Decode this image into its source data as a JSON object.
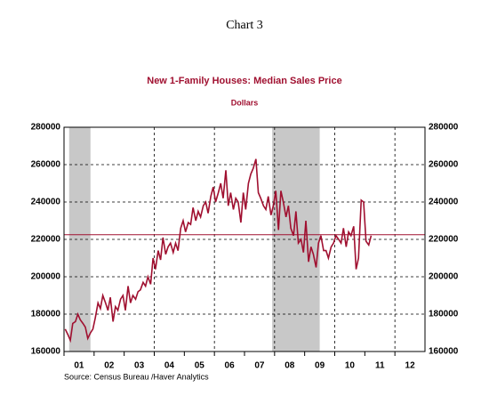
{
  "chart_data": {
    "type": "line",
    "title": "Chart 3",
    "subtitle": "New 1-Family Houses: Median Sales Price",
    "y_label": "Dollars",
    "source": "Source:  Census Bureau /Haver Analytics",
    "xlim": [
      2001,
      2013
    ],
    "xticks": [
      {
        "value": 2001.5,
        "label": "01"
      },
      {
        "value": 2002.5,
        "label": "02"
      },
      {
        "value": 2003.5,
        "label": "03"
      },
      {
        "value": 2004.5,
        "label": "04"
      },
      {
        "value": 2005.5,
        "label": "05"
      },
      {
        "value": 2006.5,
        "label": "06"
      },
      {
        "value": 2007.5,
        "label": "07"
      },
      {
        "value": 2008.5,
        "label": "08"
      },
      {
        "value": 2009.5,
        "label": "09"
      },
      {
        "value": 2010.5,
        "label": "10"
      },
      {
        "value": 2011.5,
        "label": "11"
      },
      {
        "value": 2012.5,
        "label": "12"
      }
    ],
    "xgrid": [
      2004,
      2006,
      2008,
      2010,
      2012
    ],
    "ylim": [
      160000,
      280000
    ],
    "yticks": [
      160000,
      180000,
      200000,
      220000,
      240000,
      260000,
      280000
    ],
    "y2lim": [
      160000,
      280000
    ],
    "y2ticks": [
      160000,
      180000,
      200000,
      220000,
      240000,
      260000,
      280000
    ],
    "grid": true,
    "shaded": [
      [
        2001.17,
        2001.88
      ],
      [
        2007.92,
        2009.5
      ]
    ],
    "reference_line": 222500,
    "x": [
      2001.04,
      2001.13,
      2001.21,
      2001.29,
      2001.38,
      2001.46,
      2001.54,
      2001.63,
      2001.71,
      2001.79,
      2001.88,
      2001.96,
      2002.04,
      2002.13,
      2002.21,
      2002.29,
      2002.38,
      2002.46,
      2002.54,
      2002.63,
      2002.71,
      2002.79,
      2002.88,
      2002.96,
      2003.04,
      2003.13,
      2003.21,
      2003.29,
      2003.38,
      2003.46,
      2003.54,
      2003.63,
      2003.71,
      2003.79,
      2003.88,
      2003.96,
      2004.04,
      2004.13,
      2004.21,
      2004.29,
      2004.38,
      2004.46,
      2004.54,
      2004.63,
      2004.71,
      2004.79,
      2004.88,
      2004.96,
      2005.04,
      2005.13,
      2005.21,
      2005.29,
      2005.38,
      2005.46,
      2005.54,
      2005.63,
      2005.71,
      2005.79,
      2005.88,
      2005.96,
      2006.04,
      2006.13,
      2006.21,
      2006.29,
      2006.38,
      2006.46,
      2006.54,
      2006.63,
      2006.71,
      2006.79,
      2006.88,
      2006.96,
      2007.04,
      2007.13,
      2007.21,
      2007.29,
      2007.38,
      2007.46,
      2007.54,
      2007.63,
      2007.71,
      2007.79,
      2007.88,
      2007.96,
      2008.04,
      2008.13,
      2008.21,
      2008.29,
      2008.38,
      2008.46,
      2008.54,
      2008.63,
      2008.71,
      2008.79,
      2008.88,
      2008.96,
      2009.04,
      2009.13,
      2009.21,
      2009.29,
      2009.38,
      2009.46,
      2009.54,
      2009.63,
      2009.71,
      2009.79,
      2009.88,
      2009.96,
      2010.04,
      2010.13,
      2010.21,
      2010.29,
      2010.38,
      2010.46,
      2010.54,
      2010.63,
      2010.71,
      2010.79,
      2010.88,
      2010.96,
      2011.04,
      2011.13,
      2011.21
    ],
    "series": [
      {
        "color": "#a01030",
        "values": [
          172000,
          169000,
          166000,
          175000,
          176000,
          180000,
          177000,
          175000,
          173000,
          167000,
          170000,
          172000,
          178000,
          186000,
          183000,
          190000,
          186000,
          182000,
          189000,
          176000,
          184000,
          182000,
          188000,
          190000,
          182000,
          195000,
          186000,
          190000,
          188000,
          192000,
          193000,
          197000,
          195000,
          200000,
          196000,
          210000,
          204000,
          214000,
          209000,
          221000,
          212000,
          216000,
          218000,
          213000,
          218000,
          214000,
          226000,
          230000,
          224000,
          229000,
          228000,
          237000,
          230000,
          235000,
          232000,
          238000,
          240000,
          234000,
          243000,
          248000,
          240000,
          245000,
          250000,
          242000,
          257000,
          238000,
          245000,
          236000,
          242000,
          240000,
          229000,
          245000,
          236000,
          250000,
          255000,
          258000,
          263000,
          245000,
          242000,
          238000,
          236000,
          243000,
          233000,
          238000,
          246000,
          225000,
          246000,
          240000,
          232000,
          238000,
          226000,
          222000,
          235000,
          218000,
          220000,
          213000,
          230000,
          208000,
          216000,
          212000,
          205000,
          218000,
          222000,
          214000,
          214000,
          210000,
          216000,
          218000,
          222000,
          220000,
          218000,
          226000,
          216000,
          224000,
          222000,
          227000,
          204000,
          210000,
          241000,
          240000,
          219000,
          217000,
          222000
        ]
      }
    ]
  }
}
